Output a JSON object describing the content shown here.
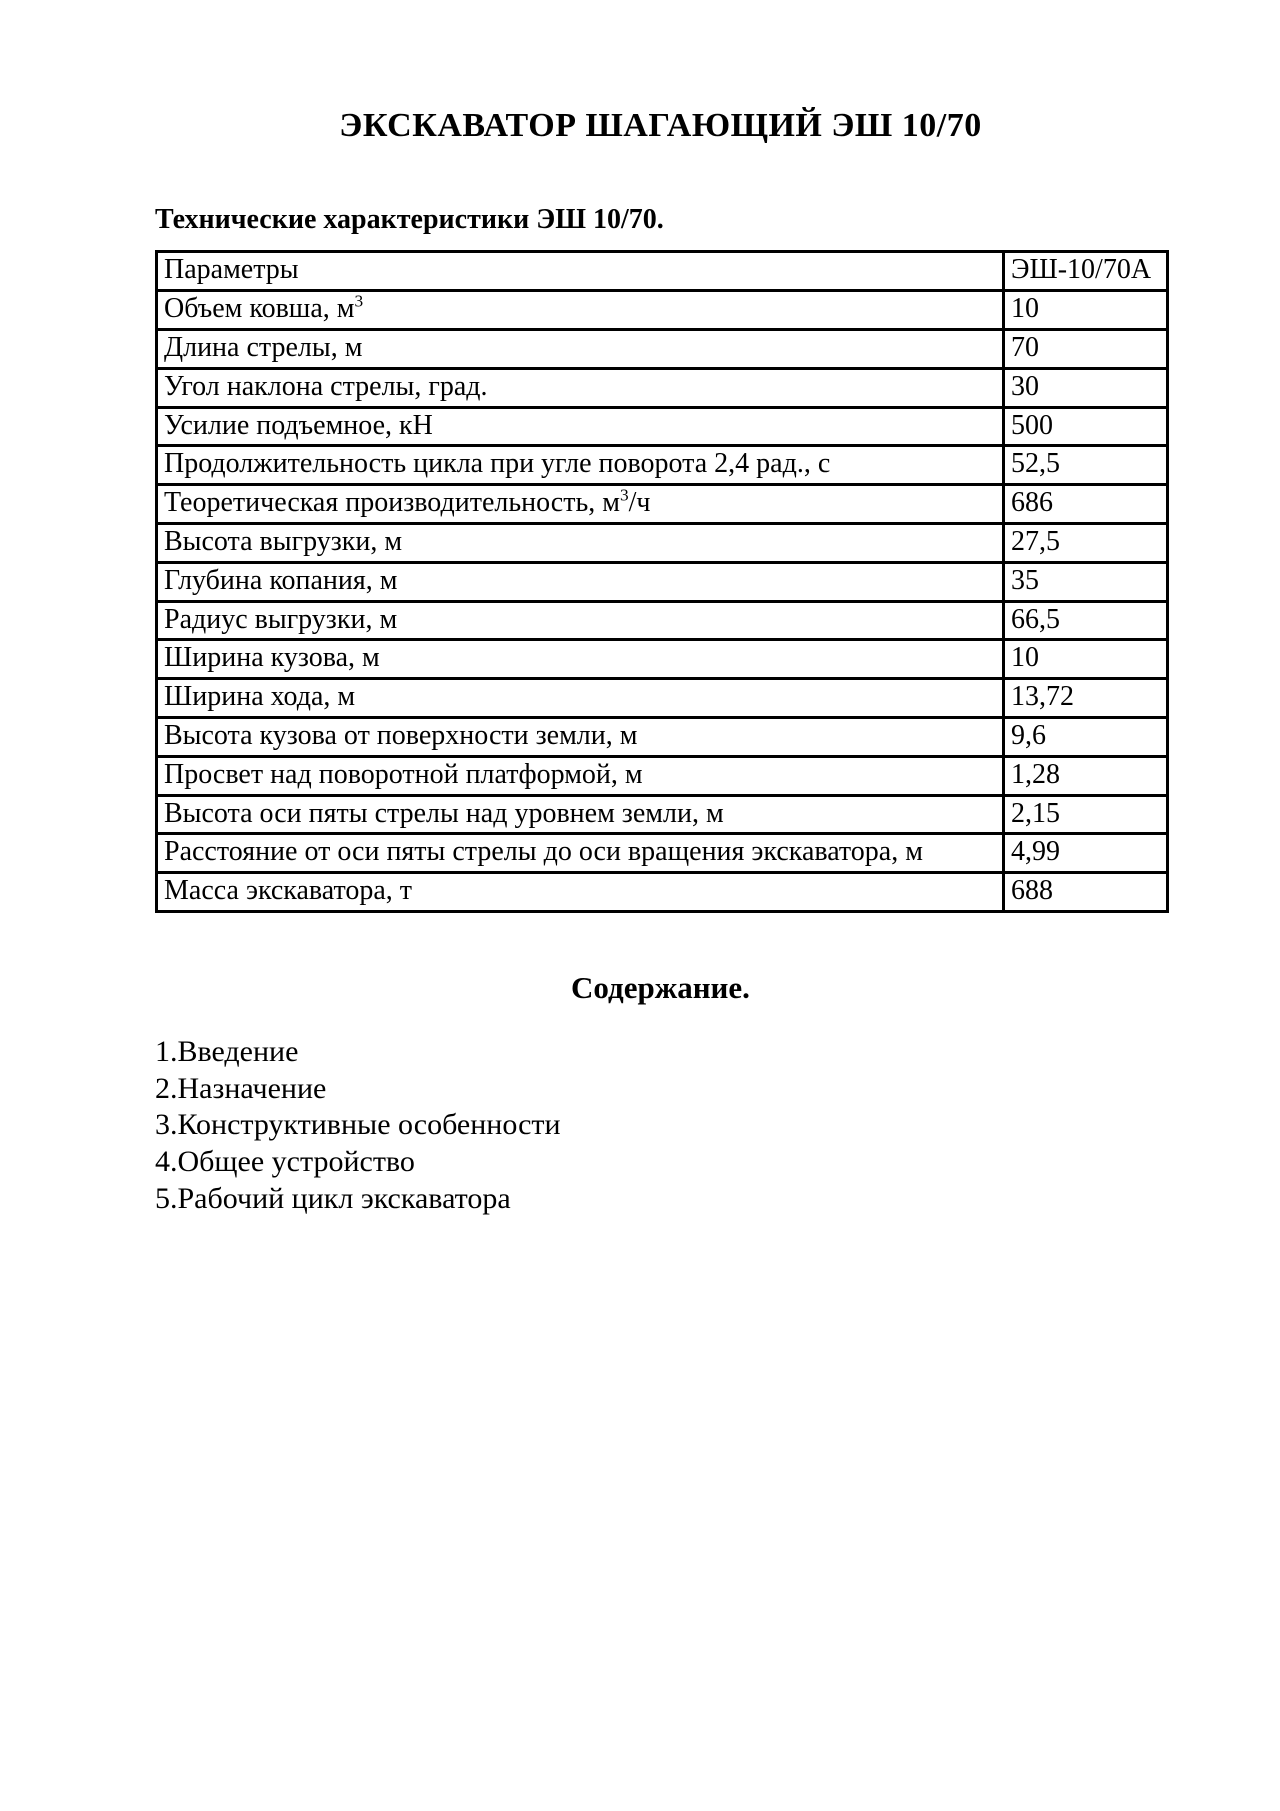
{
  "page": {
    "title": "ЭКСКАВАТОР ШАГАЮЩИЙ ЭШ 10/70",
    "section_heading": "Технические характеристики ЭШ 10/70."
  },
  "spec_table": {
    "header": {
      "param": "Параметры",
      "value": "ЭШ-10/70А"
    },
    "rows": [
      {
        "param": [
          {
            "text": "Объем ковша, м"
          },
          {
            "text": "3",
            "sup": true
          }
        ],
        "value": "10"
      },
      {
        "param": [
          {
            "text": "Длина стрелы, м"
          }
        ],
        "value": "70"
      },
      {
        "param": [
          {
            "text": "Угол наклона стрелы, град."
          }
        ],
        "value": "30"
      },
      {
        "param": [
          {
            "text": "Усилие подъемное, кН"
          }
        ],
        "value": "500"
      },
      {
        "param": [
          {
            "text": "Продолжительность цикла при угле поворота 2,4 рад., с"
          }
        ],
        "value": "52,5"
      },
      {
        "param": [
          {
            "text": "Теоретическая производительность, м"
          },
          {
            "text": "3",
            "sup": true
          },
          {
            "text": "/ч"
          }
        ],
        "value": "686"
      },
      {
        "param": [
          {
            "text": "Высота выгрузки, м"
          }
        ],
        "value": "27,5"
      },
      {
        "param": [
          {
            "text": "Глубина копания, м"
          }
        ],
        "value": "35"
      },
      {
        "param": [
          {
            "text": "Радиус выгрузки, м"
          }
        ],
        "value": "66,5"
      },
      {
        "param": [
          {
            "text": "Ширина кузова, м"
          }
        ],
        "value": "10"
      },
      {
        "param": [
          {
            "text": "Ширина хода, м"
          }
        ],
        "value": "13,72"
      },
      {
        "param": [
          {
            "text": "Высота кузова от поверхности земли, м"
          }
        ],
        "value": "9,6"
      },
      {
        "param": [
          {
            "text": "Просвет над поворотной платформой, м"
          }
        ],
        "value": "1,28"
      },
      {
        "param": [
          {
            "text": "Высота оси пяты стрелы над уровнем земли, м"
          }
        ],
        "value": "2,15"
      },
      {
        "param": [
          {
            "text": "Расстояние от оси пяты стрелы до оси вращения экскаватора, м"
          }
        ],
        "value": "4,99"
      },
      {
        "param": [
          {
            "text": "Масса экскаватора, т"
          }
        ],
        "value": "688"
      }
    ]
  },
  "contents": {
    "heading": "Содержание.",
    "items": [
      "1.Введение",
      "2.Назначение",
      "3.Конструктивные особенности",
      "4.Общее устройство",
      "5.Рабочий цикл экскаватора"
    ]
  }
}
